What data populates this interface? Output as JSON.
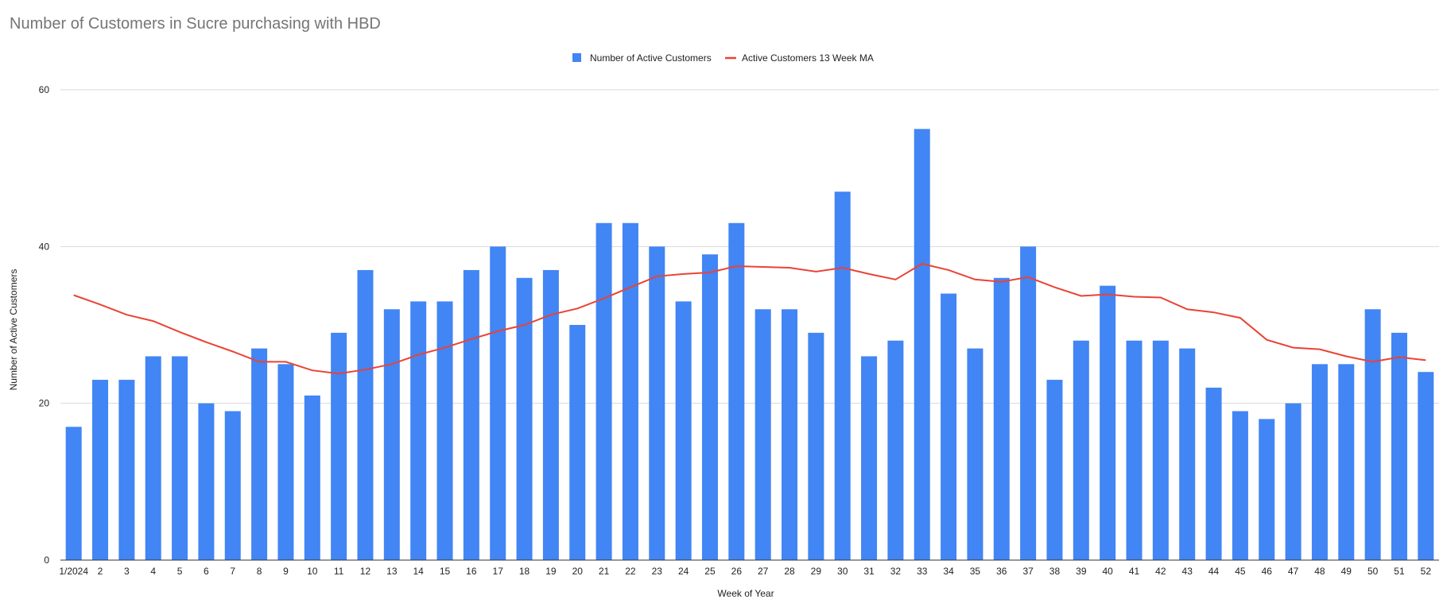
{
  "chart_data": {
    "type": "bar",
    "title": "Number of Customers in Sucre purchasing with HBD",
    "xlabel": "Week of Year",
    "ylabel": "Number of Active Customers",
    "ylim": [
      0,
      60
    ],
    "yticks": [
      0,
      20,
      40,
      60
    ],
    "grid": true,
    "legend_position": "top",
    "categories": [
      "1/2024",
      "2",
      "3",
      "4",
      "5",
      "6",
      "7",
      "8",
      "9",
      "10",
      "11",
      "12",
      "13",
      "14",
      "15",
      "16",
      "17",
      "18",
      "19",
      "20",
      "21",
      "22",
      "23",
      "24",
      "25",
      "26",
      "27",
      "28",
      "29",
      "30",
      "31",
      "32",
      "33",
      "34",
      "35",
      "36",
      "37",
      "38",
      "39",
      "40",
      "41",
      "42",
      "43",
      "44",
      "45",
      "46",
      "47",
      "48",
      "49",
      "50",
      "51",
      "52"
    ],
    "series": [
      {
        "name": "Number of Active Customers",
        "kind": "bar",
        "color": "#4285f4",
        "values": [
          17,
          23,
          23,
          26,
          26,
          20,
          19,
          27,
          25,
          21,
          29,
          37,
          32,
          33,
          33,
          37,
          40,
          36,
          37,
          30,
          43,
          43,
          40,
          33,
          39,
          43,
          32,
          32,
          29,
          47,
          26,
          28,
          55,
          34,
          27,
          36,
          40,
          23,
          28,
          35,
          28,
          28,
          27,
          22,
          19,
          18,
          20,
          25,
          25,
          32,
          29,
          24
        ]
      },
      {
        "name": "Active Customers 13 Week MA",
        "kind": "line",
        "color": "#ea4335",
        "values": [
          33.8,
          32.6,
          31.3,
          30.5,
          29.1,
          27.8,
          26.6,
          25.3,
          25.3,
          24.2,
          23.8,
          24.3,
          25.0,
          26.2,
          27.1,
          28.2,
          29.2,
          30.0,
          31.3,
          32.1,
          33.4,
          34.8,
          36.2,
          36.5,
          36.7,
          37.5,
          37.4,
          37.3,
          36.8,
          37.3,
          36.5,
          35.8,
          37.8,
          37.0,
          35.8,
          35.5,
          36.1,
          34.8,
          33.7,
          33.9,
          33.6,
          33.5,
          32.0,
          31.6,
          30.9,
          28.1,
          27.1,
          26.9,
          26.0,
          25.3,
          25.9,
          25.5
        ]
      }
    ]
  }
}
